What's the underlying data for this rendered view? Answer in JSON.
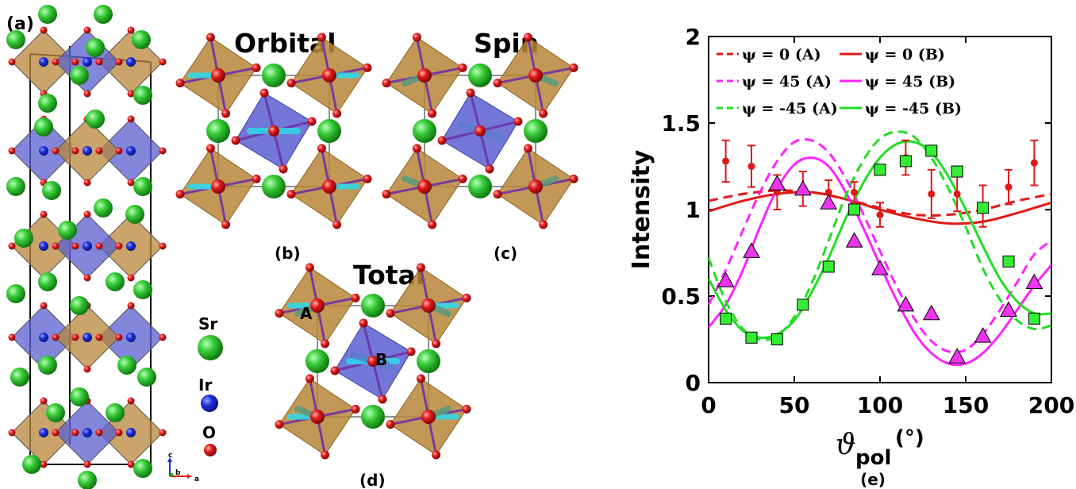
{
  "panels": {
    "a": {
      "label": "(a)"
    },
    "b": {
      "label": "(b)",
      "title": "Orbital"
    },
    "c": {
      "label": "(c)",
      "title": "Spin"
    },
    "d": {
      "label": "(d)",
      "title": "Total",
      "site_a": "A",
      "site_b": "B"
    },
    "e": {
      "label": "(e)"
    }
  },
  "legend_atoms": [
    {
      "name": "Sr",
      "color": "#2fbf2f"
    },
    {
      "name": "Ir",
      "color": "#1a2fd6"
    },
    {
      "name": "O",
      "color": "#e01818"
    }
  ],
  "axes_triad": {
    "c": "c",
    "b": "b",
    "a": "a"
  },
  "colors": {
    "octa_brown": "#b8863a",
    "octa_blue": "#5a5fd0"
  },
  "chart_data": {
    "type": "line",
    "title": "",
    "xlabel": "ϑ",
    "xlabel_sub": "pol",
    "xlabel_unit": "(°)",
    "ylabel": "Intensity",
    "xlim": [
      0,
      200
    ],
    "ylim": [
      0,
      2
    ],
    "xticks": [
      "0",
      "50",
      "100",
      "150",
      "200"
    ],
    "yticks": [
      "0",
      "0.5",
      "1",
      "1.5",
      "2"
    ],
    "legend": [
      {
        "name": "ψ =  0   (A)",
        "color": "#e01818",
        "style": "dashed"
      },
      {
        "name": "ψ =  0   (B)",
        "color": "#e01818",
        "style": "solid"
      },
      {
        "name": "ψ =  45 (A)",
        "color": "#ff22ff",
        "style": "dashed"
      },
      {
        "name": "ψ =  45 (B)",
        "color": "#ff22ff",
        "style": "solid"
      },
      {
        "name": "ψ = -45 (A)",
        "color": "#22dd22",
        "style": "dashed"
      },
      {
        "name": "ψ = -45 (B)",
        "color": "#22dd22",
        "style": "solid"
      }
    ],
    "series": [
      {
        "key": "red_dashed",
        "color": "#e01818",
        "dash": true,
        "x": [
          0,
          20,
          40,
          60,
          80,
          100,
          120,
          140,
          160,
          180,
          200
        ],
        "y": [
          1.05,
          1.09,
          1.11,
          1.1,
          1.06,
          1.01,
          0.97,
          0.97,
          1.0,
          1.05,
          1.09
        ]
      },
      {
        "key": "red_solid",
        "color": "#e01818",
        "dash": false,
        "x": [
          0,
          20,
          40,
          60,
          80,
          100,
          120,
          140,
          160,
          180,
          200
        ],
        "y": [
          0.99,
          1.05,
          1.09,
          1.1,
          1.06,
          1.0,
          0.95,
          0.92,
          0.93,
          0.98,
          1.04
        ]
      },
      {
        "key": "mag_dashed",
        "color": "#ff22ff",
        "dash": true,
        "x": [
          0,
          10,
          20,
          30,
          40,
          50,
          60,
          70,
          80,
          90,
          100,
          110,
          120,
          130,
          140,
          150,
          160,
          170,
          180,
          190,
          200
        ],
        "y": [
          0.45,
          0.65,
          0.88,
          1.1,
          1.28,
          1.39,
          1.4,
          1.33,
          1.18,
          0.98,
          0.76,
          0.55,
          0.37,
          0.24,
          0.18,
          0.19,
          0.28,
          0.42,
          0.58,
          0.74,
          0.82
        ]
      },
      {
        "key": "mag_solid",
        "color": "#ff22ff",
        "dash": false,
        "x": [
          0,
          10,
          20,
          30,
          40,
          50,
          60,
          70,
          80,
          90,
          100,
          110,
          120,
          130,
          140,
          150,
          160,
          170,
          180,
          190,
          200
        ],
        "y": [
          0.32,
          0.45,
          0.65,
          0.9,
          1.12,
          1.26,
          1.3,
          1.25,
          1.1,
          0.9,
          0.68,
          0.47,
          0.29,
          0.17,
          0.11,
          0.11,
          0.17,
          0.28,
          0.42,
          0.56,
          0.68
        ]
      },
      {
        "key": "grn_dashed",
        "color": "#22dd22",
        "dash": true,
        "x": [
          0,
          10,
          20,
          30,
          40,
          50,
          60,
          70,
          80,
          90,
          100,
          110,
          120,
          130,
          140,
          150,
          160,
          170,
          180,
          190,
          200
        ],
        "y": [
          0.72,
          0.47,
          0.31,
          0.25,
          0.27,
          0.38,
          0.57,
          0.82,
          1.08,
          1.28,
          1.41,
          1.45,
          1.42,
          1.3,
          1.12,
          0.9,
          0.66,
          0.48,
          0.36,
          0.31,
          0.33
        ]
      },
      {
        "key": "grn_solid",
        "color": "#22dd22",
        "dash": false,
        "x": [
          0,
          10,
          20,
          30,
          40,
          50,
          60,
          70,
          80,
          90,
          100,
          110,
          120,
          130,
          140,
          150,
          160,
          170,
          180,
          190,
          200
        ],
        "y": [
          0.6,
          0.42,
          0.3,
          0.26,
          0.28,
          0.36,
          0.52,
          0.72,
          0.95,
          1.15,
          1.3,
          1.38,
          1.39,
          1.33,
          1.19,
          1.0,
          0.79,
          0.6,
          0.47,
          0.4,
          0.4
        ]
      }
    ],
    "errorbars": {
      "color": "#e01818",
      "x": [
        10,
        25,
        40,
        55,
        70,
        85,
        100,
        115,
        130,
        145,
        160,
        175,
        190
      ],
      "y": [
        1.28,
        1.25,
        1.1,
        1.12,
        1.1,
        1.1,
        0.97,
        1.3,
        1.09,
        1.09,
        1.02,
        1.13,
        1.27
      ],
      "err": [
        0.12,
        0.12,
        0.1,
        0.1,
        0.07,
        0.06,
        0.07,
        0.1,
        0.14,
        0.1,
        0.12,
        0.1,
        0.13
      ]
    },
    "triangles": {
      "color": "#ee33ee",
      "x": [
        10,
        25,
        40,
        55,
        70,
        85,
        100,
        115,
        130,
        145,
        160,
        175,
        190
      ],
      "y": [
        0.59,
        0.76,
        1.15,
        1.12,
        1.04,
        0.82,
        0.66,
        0.45,
        0.4,
        0.15,
        0.27,
        0.42,
        0.58
      ]
    },
    "squares": {
      "color": "#33ee33",
      "x": [
        10,
        25,
        40,
        55,
        70,
        85,
        100,
        115,
        130,
        145,
        160,
        175,
        190
      ],
      "y": [
        0.37,
        0.26,
        0.25,
        0.45,
        0.67,
        1.0,
        1.23,
        1.28,
        1.34,
        1.22,
        1.01,
        0.7,
        0.37
      ]
    }
  }
}
